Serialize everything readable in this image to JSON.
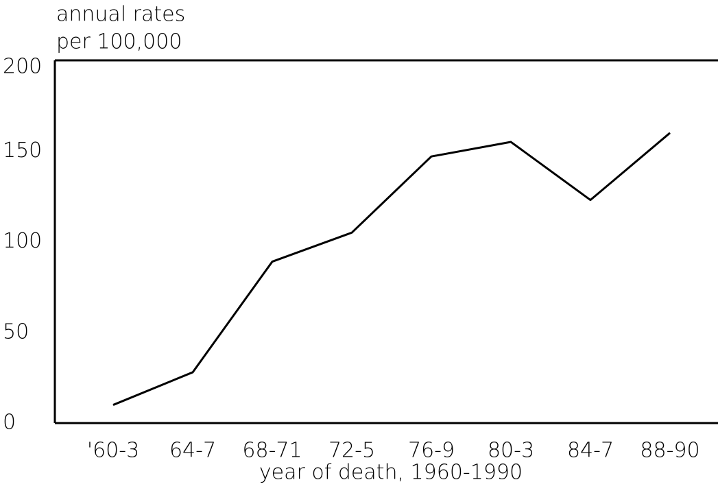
{
  "chart_data": {
    "type": "line",
    "ylabel": [
      "annual rates",
      "per 100,000"
    ],
    "xlabel": "year of death, 1960-1990",
    "categories": [
      "'60-3",
      "64-7",
      "68-71",
      "72-5",
      "76-9",
      "80-3",
      "84-7",
      "88-90"
    ],
    "values": [
      10,
      28,
      89,
      105,
      147,
      155,
      123,
      160
    ],
    "color": "#000000",
    "ylim": [
      0,
      200
    ],
    "yticks": [
      0,
      50,
      100,
      150,
      200
    ],
    "grid": false
  }
}
